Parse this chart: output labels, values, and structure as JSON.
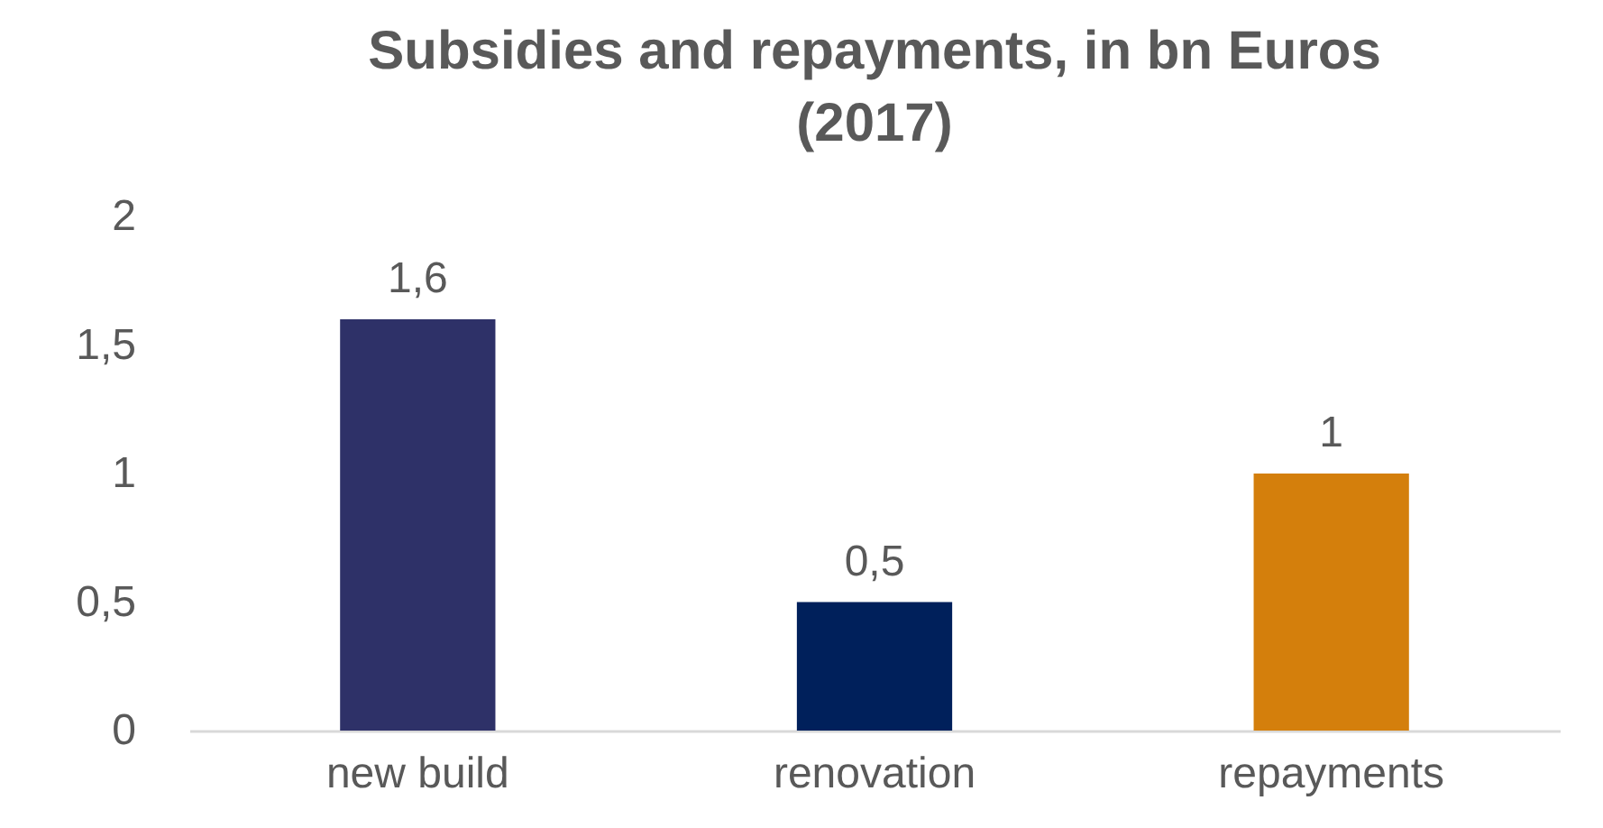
{
  "chart_data": {
    "type": "bar",
    "title": "Subsidies and repayments, in bn Euros (2017)",
    "categories": [
      "new build",
      "renovation",
      "repayments"
    ],
    "values": [
      1.6,
      0.5,
      1
    ],
    "colors": [
      "#2e3168",
      "#00205b",
      "#d47f0c"
    ],
    "value_labels": [
      "1,6",
      "0,5",
      "1"
    ],
    "ylim": [
      0,
      2
    ],
    "yticks": [
      0,
      {
        "value": 0.5,
        "label": "0,5"
      },
      1,
      {
        "value": 1.5,
        "label": "1,5"
      },
      2
    ],
    "grid": false,
    "legend": false
  }
}
